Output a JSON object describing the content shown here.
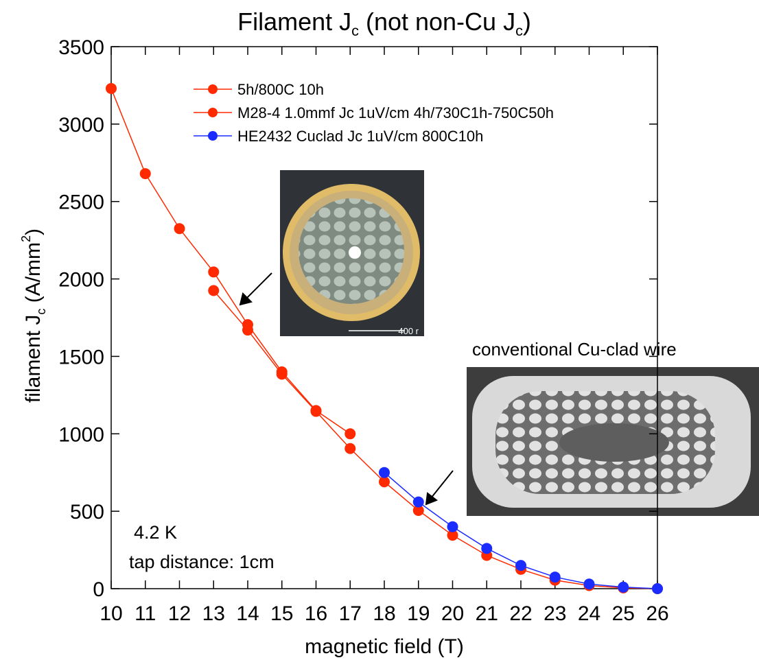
{
  "chart_data": {
    "type": "line",
    "title": [
      "Filament J",
      "c",
      " (not non-Cu J",
      "c",
      ")"
    ],
    "x_label": "magnetic field (T)",
    "y_label": [
      "filament J",
      "c",
      " (A/mm",
      "2",
      ")"
    ],
    "annotations": {
      "temperature": "4.2 K",
      "tap": "tap distance: 1cm",
      "wire": "conventional Cu-clad wire",
      "scale": "400 r"
    },
    "xlim": [
      10,
      26
    ],
    "xticks": [
      10,
      11,
      12,
      13,
      14,
      15,
      16,
      17,
      18,
      19,
      20,
      21,
      22,
      23,
      24,
      25,
      26
    ],
    "ylim": [
      0,
      3500
    ],
    "yticks": [
      0,
      500,
      1000,
      1500,
      2000,
      2500,
      3000,
      3500
    ],
    "series": [
      {
        "name": "5h/800C 10h",
        "color": "#ff2a00",
        "x": [
          10,
          11,
          12,
          13,
          14,
          15,
          16,
          17
        ],
        "values": [
          3230,
          2680,
          2325,
          2045,
          1705,
          1400,
          1150,
          1000
        ]
      },
      {
        "name": "M28-4 1.0mmf Jc 1uV/cm 4h/730C1h-750C50h",
        "color": "#ff2a00",
        "x": [
          13,
          14,
          15,
          16,
          17,
          18,
          19,
          20,
          21,
          22,
          23,
          24,
          25,
          26
        ],
        "values": [
          1925,
          1670,
          1385,
          1145,
          905,
          690,
          505,
          345,
          215,
          125,
          55,
          20,
          5,
          0
        ]
      },
      {
        "name": "HE2432 Cuclad Jc 1uV/cm 800C10h",
        "color": "#1a2cff",
        "x": [
          18,
          19,
          20,
          21,
          22,
          23,
          24,
          25,
          26
        ],
        "values": [
          750,
          560,
          400,
          260,
          150,
          75,
          30,
          10,
          0
        ]
      }
    ]
  }
}
